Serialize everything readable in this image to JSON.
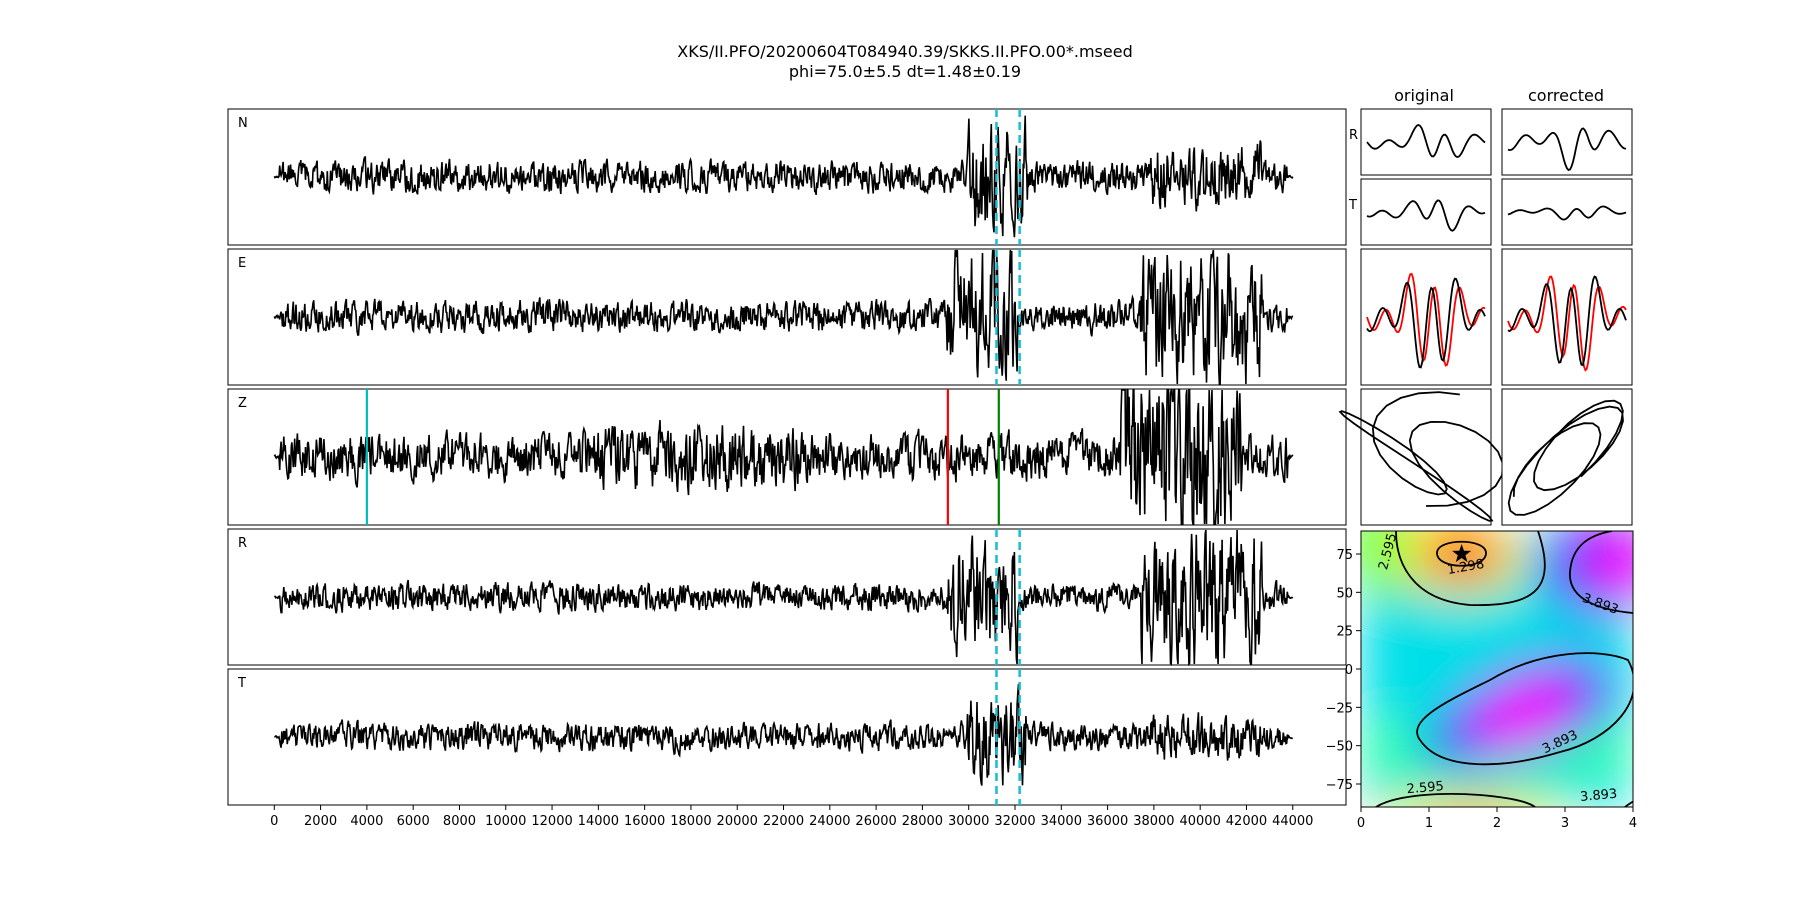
{
  "title": {
    "line1": "XKS/II.PFO/20200604T084940.39/SKKS.II.PFO.00*.mseed",
    "line2": "phi=75.0±5.5 dt=1.48±0.19"
  },
  "column_titles": {
    "original": "original",
    "corrected": "corrected"
  },
  "colors": {
    "trace": "#000000",
    "window": "#17becf",
    "pick_cyan": "#00bcbc",
    "pick_red": "#ff0000",
    "pick_green": "#008000",
    "overlay_red": "#ff0000"
  },
  "chart_data": [
    {
      "type": "line",
      "name": "waveform-traces",
      "xlim": [
        -2000,
        46300
      ],
      "xticks": [
        0,
        2000,
        4000,
        6000,
        8000,
        10000,
        12000,
        14000,
        16000,
        18000,
        20000,
        22000,
        24000,
        26000,
        28000,
        30000,
        32000,
        34000,
        36000,
        38000,
        40000,
        42000,
        44000
      ],
      "xtick_labels": [
        "0",
        "2000",
        "4000",
        "6000",
        "8000",
        "10000",
        "12000",
        "14000",
        "16000",
        "18000",
        "20000",
        "22000",
        "24000",
        "26000",
        "28000",
        "30000",
        "32000",
        "34000",
        "36000",
        "38000",
        "40000",
        "42000",
        "44000"
      ],
      "x_range_data": [
        0,
        44000
      ],
      "panels": [
        {
          "label": "N",
          "window": [
            31200,
            32200
          ],
          "picks": []
        },
        {
          "label": "E",
          "window": [
            31200,
            32200
          ],
          "picks": []
        },
        {
          "label": "Z",
          "window": null,
          "picks": [
            {
              "x": 4000,
              "color": "cyan"
            },
            {
              "x": 29100,
              "color": "red"
            },
            {
              "x": 31300,
              "color": "green"
            }
          ]
        },
        {
          "label": "R",
          "window": [
            31200,
            32200
          ],
          "picks": []
        },
        {
          "label": "T",
          "window": [
            31200,
            32200
          ],
          "picks": []
        }
      ]
    },
    {
      "type": "line",
      "name": "windowed-components",
      "rows": [
        {
          "label": "R"
        },
        {
          "label": "T"
        },
        {
          "label": ""
        },
        {
          "label": ""
        }
      ],
      "columns": [
        "original",
        "corrected"
      ]
    },
    {
      "type": "heatmap",
      "name": "error-surface",
      "xlim": [
        0,
        4
      ],
      "ylim": [
        -90,
        90
      ],
      "xticks": [
        0,
        1,
        2,
        3,
        4
      ],
      "xtick_labels": [
        "0",
        "1",
        "2",
        "3",
        "4"
      ],
      "yticks": [
        75,
        50,
        25,
        0,
        -25,
        -50,
        -75
      ],
      "ytick_labels": [
        "75",
        "50",
        "25",
        "0",
        "−25",
        "−50",
        "−75"
      ],
      "best": {
        "dt": 1.48,
        "phi": 75.0
      },
      "contour_labels": [
        {
          "text": "1.298",
          "dt": 1.55,
          "phi": 64
        },
        {
          "text": "2.595",
          "dt": 0.45,
          "phi": 76
        },
        {
          "text": "3.893",
          "dt": 3.5,
          "phi": 40
        },
        {
          "text": "3.893",
          "dt": 2.95,
          "phi": -50
        },
        {
          "text": "2.595",
          "dt": 0.95,
          "phi": -80
        },
        {
          "text": "3.893",
          "dt": 3.5,
          "phi": -85
        }
      ]
    }
  ]
}
